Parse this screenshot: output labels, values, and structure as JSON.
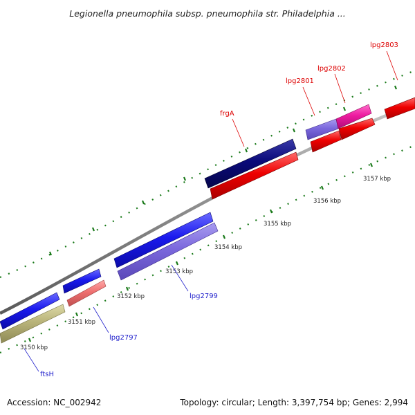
{
  "title": "Legionella pneumophila subsp. pneumophila str. Philadelphia ...",
  "footer": {
    "accession": "Accession: NC_002942",
    "summary": "Topology: circular; Length: 3,397,754 bp; Genes: 2,994"
  },
  "kbp_labels": [
    "3150 kbp",
    "3151 kbp",
    "3152 kbp",
    "3153 kbp",
    "3154 kbp",
    "3155 kbp",
    "3156 kbp",
    "3157 kbp"
  ],
  "gene_labels": {
    "ftsH": "ftsH",
    "lpg2797": "lpg2797",
    "lpg2799": "lpg2799",
    "frgA": "frgA",
    "lpg2801": "lpg2801",
    "lpg2802": "lpg2802",
    "lpg2803": "lpg2803"
  },
  "colors": {
    "backbone": "#8c8c8c",
    "tick": "#1a7a1a",
    "reverse_label": "#2222cc",
    "forward_label": "#dd0000",
    "blue": "#1a1aee",
    "light_blue": "#7b68dd",
    "navy": "#0a0a7a",
    "red": "#ee0000",
    "pink": "#ee7070",
    "magenta": "#ee1ca0",
    "olive": "#b9b47a"
  }
}
